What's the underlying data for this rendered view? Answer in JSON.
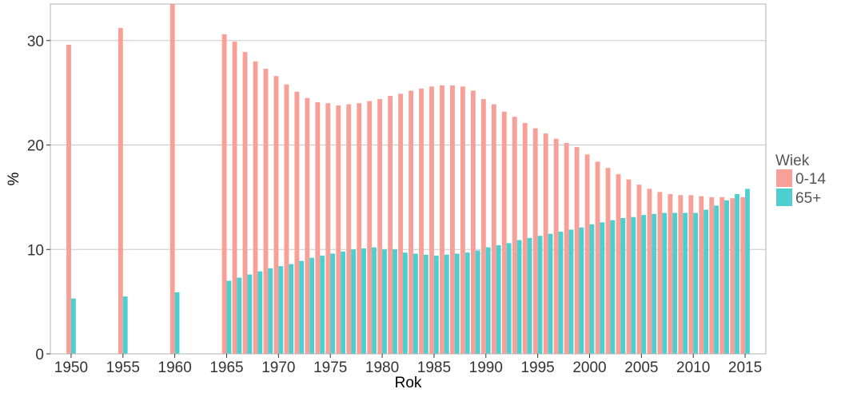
{
  "chart_data": {
    "type": "bar",
    "xlabel": "Rok",
    "ylabel": "%",
    "ylim": [
      0,
      33.5
    ],
    "yticks": [
      0,
      10,
      20,
      30
    ],
    "xticks": [
      1950,
      1955,
      1960,
      1965,
      1970,
      1975,
      1980,
      1985,
      1990,
      1995,
      2000,
      2005,
      2010,
      2015
    ],
    "xlim": [
      1948,
      2017
    ],
    "grid": true,
    "legend": {
      "title": "Wiek",
      "position": "right"
    },
    "x": [
      1950,
      1955,
      1960,
      1965,
      1966,
      1967,
      1968,
      1969,
      1970,
      1971,
      1972,
      1973,
      1974,
      1975,
      1976,
      1977,
      1978,
      1979,
      1980,
      1981,
      1982,
      1983,
      1984,
      1985,
      1986,
      1987,
      1988,
      1989,
      1990,
      1991,
      1992,
      1993,
      1994,
      1995,
      1996,
      1997,
      1998,
      1999,
      2000,
      2001,
      2002,
      2003,
      2004,
      2005,
      2006,
      2007,
      2008,
      2009,
      2010,
      2011,
      2012,
      2013,
      2014,
      2015
    ],
    "series": [
      {
        "name": "0-14",
        "color": "#F8A098",
        "values": [
          29.6,
          31.2,
          33.6,
          30.6,
          29.9,
          28.9,
          28.0,
          27.3,
          26.6,
          25.8,
          25.1,
          24.5,
          24.1,
          24.0,
          23.8,
          23.9,
          24.0,
          24.2,
          24.4,
          24.7,
          24.9,
          25.2,
          25.4,
          25.6,
          25.7,
          25.7,
          25.6,
          25.2,
          24.4,
          23.9,
          23.2,
          22.7,
          22.1,
          21.6,
          21.1,
          20.6,
          20.2,
          19.8,
          19.1,
          18.4,
          17.8,
          17.2,
          16.7,
          16.2,
          15.8,
          15.5,
          15.3,
          15.2,
          15.2,
          15.1,
          15.0,
          15.0,
          14.9,
          15.0
        ]
      },
      {
        "name": "65+",
        "color": "#4ECFCF",
        "values": [
          5.3,
          5.5,
          5.9,
          7.0,
          7.3,
          7.6,
          7.9,
          8.2,
          8.4,
          8.6,
          8.9,
          9.2,
          9.4,
          9.6,
          9.8,
          10.0,
          10.1,
          10.2,
          10.0,
          10.0,
          9.7,
          9.6,
          9.5,
          9.4,
          9.5,
          9.6,
          9.7,
          9.9,
          10.2,
          10.4,
          10.6,
          10.9,
          11.1,
          11.3,
          11.5,
          11.7,
          11.9,
          12.1,
          12.4,
          12.6,
          12.8,
          13.0,
          13.1,
          13.3,
          13.4,
          13.5,
          13.5,
          13.5,
          13.5,
          13.8,
          14.2,
          14.7,
          15.3,
          15.8
        ]
      }
    ]
  }
}
